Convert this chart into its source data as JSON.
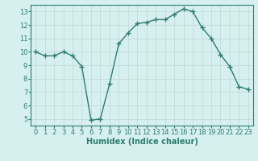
{
  "x": [
    0,
    1,
    2,
    3,
    4,
    5,
    6,
    7,
    8,
    9,
    10,
    11,
    12,
    13,
    14,
    15,
    16,
    17,
    18,
    19,
    20,
    21,
    22,
    23
  ],
  "y": [
    10.0,
    9.7,
    9.7,
    10.0,
    9.7,
    8.9,
    4.9,
    5.0,
    7.6,
    10.6,
    11.4,
    12.1,
    12.2,
    12.4,
    12.4,
    12.8,
    13.2,
    13.0,
    11.8,
    11.0,
    9.8,
    8.9,
    7.4,
    7.2
  ],
  "line_color": "#2e7d70",
  "marker": "+",
  "markersize": 4,
  "linewidth": 1.0,
  "xlabel": "Humidex (Indice chaleur)",
  "xlabel_fontsize": 7,
  "bg_color": "#d6f0ef",
  "grid_color": "#c0d8d8",
  "xlim": [
    -0.5,
    23.5
  ],
  "ylim": [
    4.5,
    13.5
  ],
  "yticks": [
    5,
    6,
    7,
    8,
    9,
    10,
    11,
    12,
    13
  ],
  "xticks": [
    0,
    1,
    2,
    3,
    4,
    5,
    6,
    7,
    8,
    9,
    10,
    11,
    12,
    13,
    14,
    15,
    16,
    17,
    18,
    19,
    20,
    21,
    22,
    23
  ],
  "tick_fontsize": 6,
  "spine_color": "#2e7d70"
}
